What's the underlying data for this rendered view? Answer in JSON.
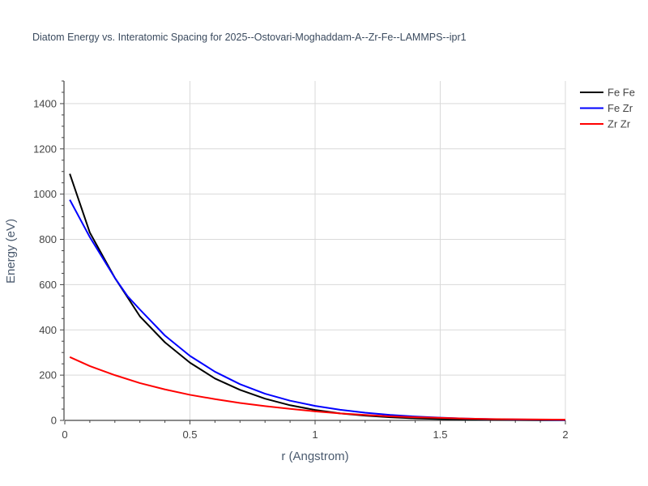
{
  "chart_data": {
    "type": "line",
    "title": "Diatom Energy vs. Interatomic Spacing for 2025--Ostovari-Moghaddam-A--Zr-Fe--LAMMPS--ipr1",
    "xlabel": "r (Angstrom)",
    "ylabel": "Energy (eV)",
    "xlim": [
      0,
      2
    ],
    "ylim": [
      0,
      1500
    ],
    "x_ticks": [
      0,
      0.5,
      1,
      1.5,
      2
    ],
    "x_tick_labels": [
      "0",
      "0.5",
      "1",
      "1.5",
      "2"
    ],
    "y_ticks": [
      0,
      200,
      400,
      600,
      800,
      1000,
      1200,
      1400
    ],
    "y_tick_labels": [
      "0",
      "200",
      "400",
      "600",
      "800",
      "1000",
      "1200",
      "1400"
    ],
    "grid": true,
    "legend_position": "top-right",
    "series": [
      {
        "name": "Fe Fe",
        "color": "#000000",
        "x": [
          0.02,
          0.1,
          0.2,
          0.25,
          0.3,
          0.4,
          0.5,
          0.6,
          0.7,
          0.8,
          0.9,
          1.0,
          1.1,
          1.2,
          1.3,
          1.4,
          1.5,
          1.6,
          1.7,
          1.8,
          1.9,
          2.0
        ],
        "y": [
          1090,
          830,
          630,
          545,
          460,
          345,
          255,
          185,
          135,
          96,
          67,
          46,
          31,
          21,
          14,
          9,
          6,
          4,
          3,
          2,
          1,
          1
        ]
      },
      {
        "name": "Fe Zr",
        "color": "#0000ff",
        "x": [
          0.02,
          0.1,
          0.2,
          0.25,
          0.3,
          0.4,
          0.5,
          0.6,
          0.7,
          0.8,
          0.9,
          1.0,
          1.1,
          1.2,
          1.3,
          1.4,
          1.5,
          1.6,
          1.7,
          1.8,
          1.9,
          2.0
        ],
        "y": [
          975,
          810,
          630,
          550,
          490,
          375,
          285,
          215,
          160,
          118,
          87,
          64,
          47,
          34,
          24,
          17,
          12,
          8,
          6,
          4,
          3,
          2
        ]
      },
      {
        "name": "Zr Zr",
        "color": "#ff0000",
        "x": [
          0.02,
          0.1,
          0.2,
          0.3,
          0.4,
          0.5,
          0.6,
          0.7,
          0.8,
          0.9,
          1.0,
          1.1,
          1.2,
          1.3,
          1.4,
          1.5,
          1.6,
          1.7,
          1.8,
          1.9,
          2.0
        ],
        "y": [
          280,
          240,
          200,
          165,
          137,
          113,
          94,
          77,
          63,
          51,
          40,
          31,
          24,
          18,
          14,
          11,
          8,
          6,
          5,
          4,
          3
        ]
      }
    ]
  }
}
